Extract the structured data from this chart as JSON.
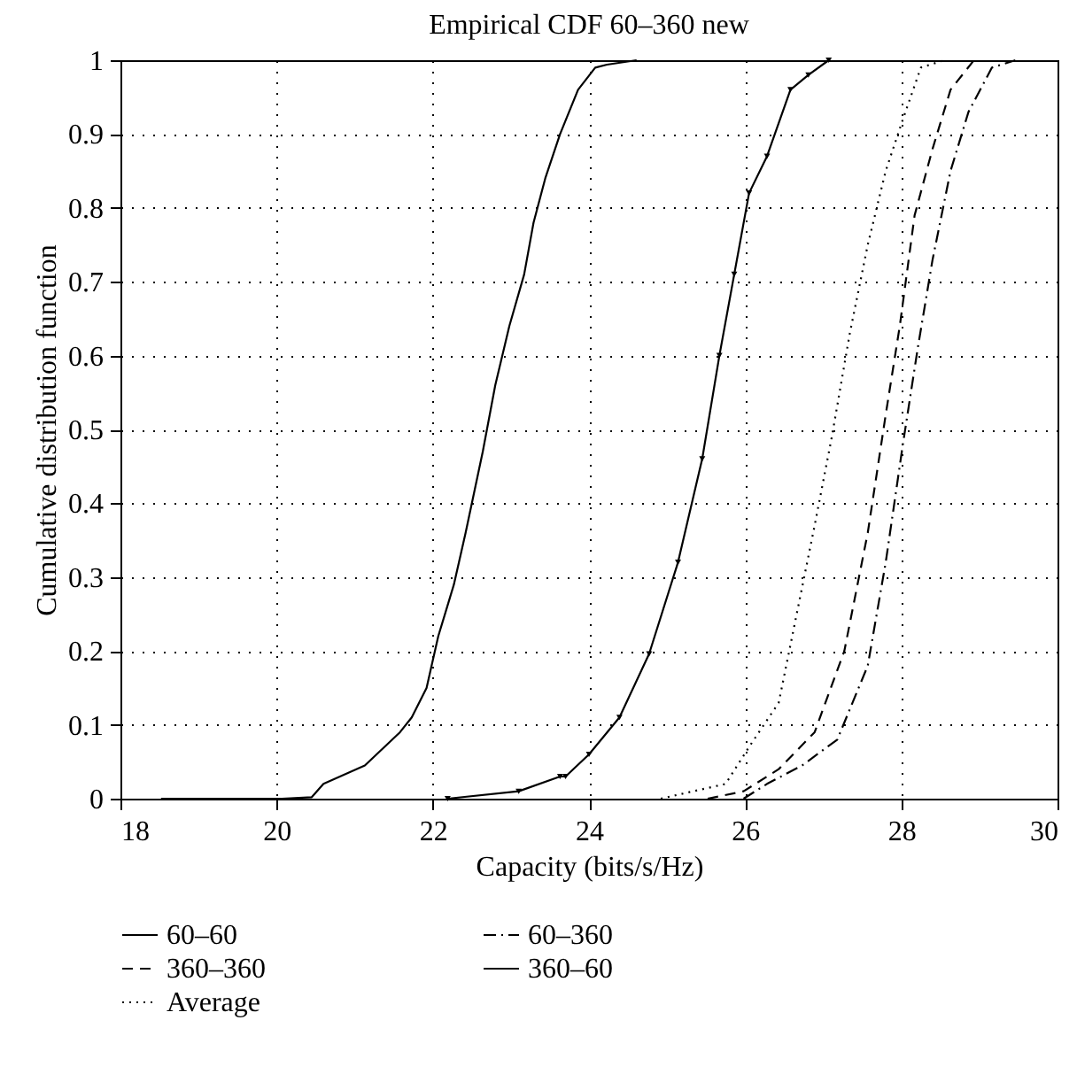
{
  "chart_data": {
    "type": "line",
    "title": "Empirical CDF 60–360 new",
    "xlabel": "Capacity (bits/s/Hz)",
    "ylabel": "Cumulative distribution function",
    "xlim": [
      18,
      30
    ],
    "xticks": [
      18,
      20,
      22,
      24,
      26,
      28,
      30
    ],
    "ylim": [
      0,
      1
    ],
    "yticks": [
      0,
      0.1,
      0.2,
      0.3,
      0.4,
      0.5,
      0.6,
      0.7,
      0.8,
      0.9,
      1
    ],
    "grid": true,
    "legend": "bottom",
    "series": [
      {
        "name": "60–60",
        "color": "#000000",
        "line_style": "solid",
        "x": [
          18.52,
          20.07,
          20.45,
          20.6,
          21.13,
          21.58,
          21.73,
          21.92,
          22.07,
          22.27,
          22.42,
          22.64,
          22.8,
          22.98,
          23.17,
          23.29,
          23.44,
          23.63,
          23.86,
          24.08,
          24.23,
          24.61
        ],
        "values": [
          0,
          0,
          0.002,
          0.02,
          0.045,
          0.09,
          0.11,
          0.15,
          0.22,
          0.29,
          0.36,
          0.47,
          0.56,
          0.64,
          0.71,
          0.78,
          0.84,
          0.9,
          0.96,
          0.99,
          0.994,
          1
        ]
      },
      {
        "name": "60–360",
        "color": "#000000",
        "line_style": "dashdot",
        "x": [
          25.98,
          26.28,
          26.73,
          27.18,
          27.57,
          27.8,
          28.02,
          28.21,
          28.4,
          28.63,
          28.86,
          29.16,
          29.46
        ],
        "values": [
          0,
          0.02,
          0.045,
          0.08,
          0.18,
          0.32,
          0.48,
          0.61,
          0.73,
          0.85,
          0.93,
          0.99,
          1
        ]
      },
      {
        "name": "360–360",
        "color": "#000000",
        "line_style": "dashed",
        "x": [
          25.52,
          25.98,
          26.43,
          26.89,
          27.27,
          27.57,
          27.8,
          27.98,
          28.17,
          28.4,
          28.63,
          28.93
        ],
        "values": [
          0,
          0.01,
          0.04,
          0.09,
          0.2,
          0.36,
          0.52,
          0.64,
          0.79,
          0.88,
          0.96,
          1
        ]
      },
      {
        "name": "360–60",
        "color": "#000000",
        "line_style": "solid",
        "marker": "triangle",
        "x": [
          22.19,
          23.1,
          23.63,
          23.7,
          24.0,
          24.39,
          24.77,
          25.14,
          25.45,
          25.67,
          25.86,
          26.05,
          26.28,
          26.58,
          26.81,
          27.07
        ],
        "values": [
          0,
          0.01,
          0.03,
          0.03,
          0.06,
          0.11,
          0.196,
          0.32,
          0.46,
          0.6,
          0.71,
          0.82,
          0.87,
          0.96,
          0.98,
          1
        ]
      },
      {
        "name": "Average",
        "color": "#000000",
        "line_style": "dotted",
        "x": [
          24.92,
          25.75,
          26.05,
          26.43,
          26.66,
          26.89,
          27.11,
          27.34,
          27.57,
          27.8,
          28.02,
          28.25,
          28.55
        ],
        "values": [
          0,
          0.02,
          0.07,
          0.13,
          0.25,
          0.37,
          0.49,
          0.63,
          0.75,
          0.85,
          0.92,
          0.99,
          1
        ]
      }
    ]
  }
}
